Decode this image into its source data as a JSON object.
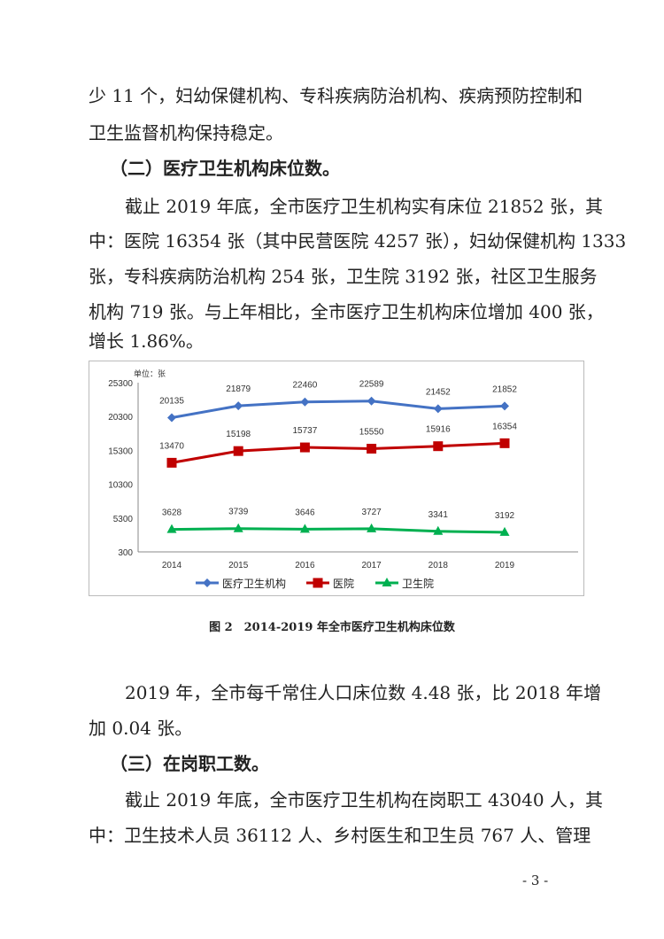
{
  "paragraphs_top": [
    "少 11 个，妇幼保健机构、专科疾病防治机构、疾病预防控制和",
    "卫生监督机构保持稳定。"
  ],
  "heading2": "（二）医疗卫生机构床位数。",
  "paragraph2": [
    "截止 2019 年底，全市医疗卫生机构实有床位 21852 张，其",
    "中：医院 16354 张（其中民营医院 4257 张），妇幼保健机构 1333",
    "张，专科疾病防治机构 254 张，卫生院 3192 张，社区卫生服务",
    "机构 719 张。与上年相比，全市医疗卫生机构床位增加 400 张，",
    "增长 1.86%。"
  ],
  "caption": "图 2　2014-2019 年全市医疗卫生机构床位数",
  "paragraph3": [
    "2019 年，全市每千常住人口床位数 4.48 张，比 2018 年增",
    "加 0.04 张。"
  ],
  "heading3": "（三）在岗职工数。",
  "paragraph4": [
    "截止 2019 年底，全市医疗卫生机构在岗职工 43040 人，其",
    "中：卫生技术人员 36112 人、乡村医生和卫生员 767 人、管理"
  ],
  "page_number": "- 3 -",
  "chart_data": {
    "type": "line",
    "unit_label": "单位：张",
    "categories": [
      "2014",
      "2015",
      "2016",
      "2017",
      "2018",
      "2019"
    ],
    "yticks": [
      "25300",
      "20300",
      "15300",
      "10300",
      "5300",
      "300"
    ],
    "ylim": [
      300,
      25300
    ],
    "grid": false,
    "legend_position": "bottom",
    "series": [
      {
        "name": "医疗卫生机构",
        "values": [
          20135,
          21879,
          22460,
          22589,
          21452,
          21852
        ],
        "color": "#4472c4",
        "marker": "diamond"
      },
      {
        "name": "医院",
        "values": [
          13470,
          15198,
          15737,
          15550,
          15916,
          16354
        ],
        "color": "#c00000",
        "marker": "square"
      },
      {
        "name": "卫生院",
        "values": [
          3628,
          3739,
          3646,
          3727,
          3341,
          3192
        ],
        "color": "#00b050",
        "marker": "triangle"
      }
    ]
  }
}
